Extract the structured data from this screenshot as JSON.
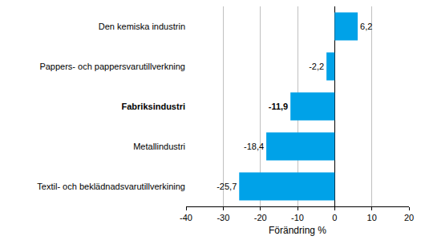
{
  "chart_data": {
    "type": "bar",
    "orientation": "horizontal",
    "categories": [
      "Den kemiska industrin",
      "Pappers- och pappersvarutillverkning",
      "Fabriksindustri",
      "Metallindustri",
      "Textil- och beklädnadsvarutillverkining"
    ],
    "values": [
      6.2,
      -2.2,
      -11.9,
      -18.4,
      -25.7
    ],
    "value_labels": [
      "6,2",
      "-2,2",
      "-11,9",
      "-18,4",
      "-25,7"
    ],
    "data_labels": true,
    "color": "#00a2e8",
    "x_label": "Förändring %",
    "xlim": [
      -40,
      20
    ],
    "xticks": [
      -40,
      -30,
      -20,
      -10,
      0,
      10,
      20
    ],
    "grid": true
  }
}
